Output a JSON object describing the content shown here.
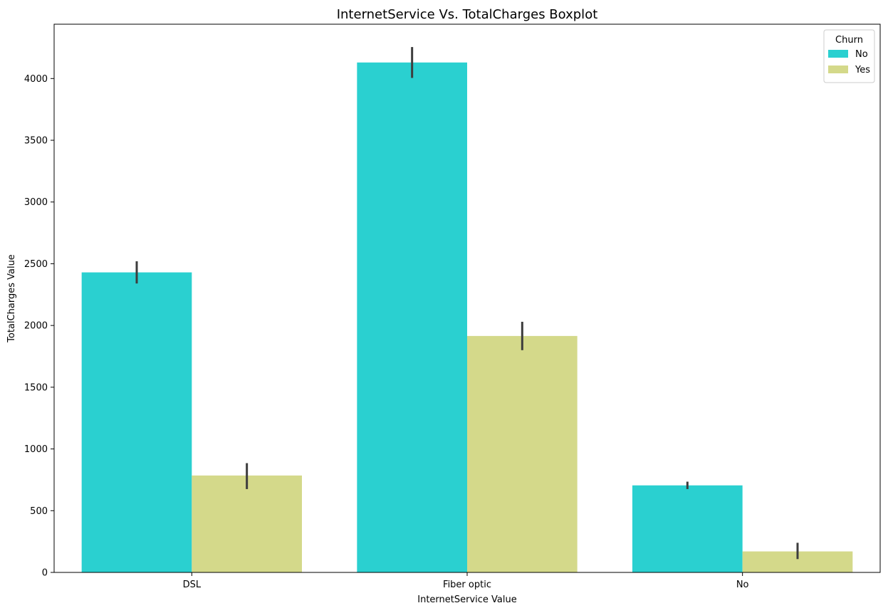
{
  "chart_data": {
    "type": "bar",
    "title": "InternetService Vs. TotalCharges Boxplot",
    "xlabel": "InternetService Value",
    "ylabel": "TotalCharges Value",
    "categories": [
      "DSL",
      "Fiber optic",
      "No"
    ],
    "ylim": [
      0,
      4440
    ],
    "yticks": [
      0,
      500,
      1000,
      1500,
      2000,
      2500,
      3000,
      3500,
      4000
    ],
    "grid": false,
    "legend": {
      "title": "Churn",
      "placement": "top-right"
    },
    "series": [
      {
        "name": "No",
        "color": "#2ad0d0",
        "values": [
          2430,
          4130,
          705
        ],
        "error_low": [
          2340,
          4005,
          675
        ],
        "error_high": [
          2520,
          4255,
          735
        ]
      },
      {
        "name": "Yes",
        "color": "#d4d98a",
        "values": [
          785,
          1915,
          170
        ],
        "error_low": [
          675,
          1800,
          108
        ],
        "error_high": [
          885,
          2030,
          240
        ]
      }
    ]
  }
}
